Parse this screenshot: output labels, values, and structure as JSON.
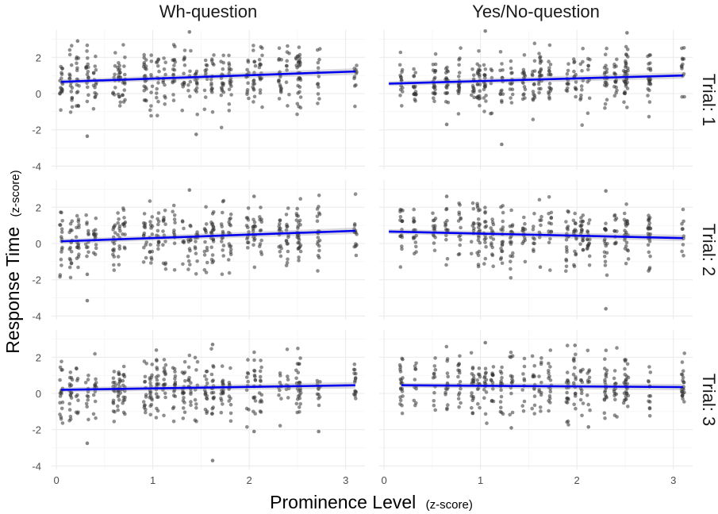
{
  "chart_data": {
    "type": "scatter",
    "xlabel": "Prominence Level",
    "xlabel_unit": "(z-score)",
    "ylabel": "Response Time",
    "ylabel_unit": "(z-score)",
    "columns": [
      "Wh-question",
      "Yes/No-question"
    ],
    "rows": [
      "Trial: 1",
      "Trial: 2",
      "Trial: 3"
    ],
    "xlim": [
      -0.05,
      3.2
    ],
    "ylim": [
      -4.2,
      3.5
    ],
    "x_ticks": [
      0,
      1,
      2,
      3
    ],
    "y_ticks": [
      -4,
      -2,
      0,
      2
    ],
    "grid": true,
    "point_color": "#333333",
    "line_color": "#0000ee",
    "x_levels": {
      "Wh-question": [
        0.05,
        0.15,
        0.22,
        0.32,
        0.4,
        0.6,
        0.65,
        0.7,
        0.92,
        0.98,
        1.05,
        1.12,
        1.22,
        1.32,
        1.38,
        1.45,
        1.55,
        1.62,
        1.72,
        1.8,
        1.98,
        2.05,
        2.12,
        2.32,
        2.4,
        2.5,
        2.52,
        2.72,
        3.1
      ],
      "Yes/No-question": [
        0.18,
        0.32,
        0.52,
        0.65,
        0.78,
        0.92,
        0.98,
        1.05,
        1.12,
        1.22,
        1.32,
        1.45,
        1.55,
        1.62,
        1.72,
        1.9,
        1.98,
        2.05,
        2.12,
        2.3,
        2.4,
        2.5,
        2.52,
        2.75,
        3.1
      ]
    },
    "panels": [
      {
        "column": "Wh-question",
        "row": "Trial: 1",
        "fit": {
          "x": [
            0.05,
            3.1
          ],
          "y": [
            0.65,
            1.22
          ]
        },
        "center": 0.82,
        "spread": 0.85,
        "n": 420,
        "outliers": [
          [
            0.32,
            -2.35
          ],
          [
            1.45,
            -2.25
          ],
          [
            1.38,
            3.4
          ],
          [
            0.22,
            2.9
          ]
        ]
      },
      {
        "column": "Yes/No-question",
        "row": "Trial: 1",
        "fit": {
          "x": [
            0.05,
            3.1
          ],
          "y": [
            0.55,
            1.0
          ]
        },
        "center": 0.78,
        "spread": 0.8,
        "n": 400,
        "outliers": [
          [
            1.22,
            -2.8
          ],
          [
            1.05,
            3.45
          ],
          [
            0.65,
            -1.7
          ],
          [
            2.52,
            3.35
          ]
        ]
      },
      {
        "column": "Wh-question",
        "row": "Trial: 2",
        "fit": {
          "x": [
            0.05,
            3.1
          ],
          "y": [
            0.12,
            0.7
          ]
        },
        "center": 0.35,
        "spread": 0.85,
        "n": 420,
        "outliers": [
          [
            0.32,
            -3.15
          ],
          [
            0.32,
            -1.7
          ],
          [
            1.38,
            2.95
          ],
          [
            2.05,
            2.6
          ]
        ]
      },
      {
        "column": "Yes/No-question",
        "row": "Trial: 2",
        "fit": {
          "x": [
            0.05,
            3.1
          ],
          "y": [
            0.66,
            0.3
          ]
        },
        "center": 0.5,
        "spread": 0.8,
        "n": 380,
        "outliers": [
          [
            2.3,
            -3.6
          ],
          [
            2.3,
            2.9
          ],
          [
            0.65,
            2.6
          ],
          [
            1.62,
            -1.3
          ]
        ]
      },
      {
        "column": "Wh-question",
        "row": "Trial: 3",
        "fit": {
          "x": [
            0.05,
            3.1
          ],
          "y": [
            0.2,
            0.45
          ]
        },
        "center": 0.3,
        "spread": 0.85,
        "n": 420,
        "outliers": [
          [
            1.62,
            -3.7
          ],
          [
            0.32,
            -2.75
          ],
          [
            2.72,
            -2.1
          ],
          [
            1.62,
            2.7
          ],
          [
            2.05,
            -2.1
          ]
        ]
      },
      {
        "column": "Yes/No-question",
        "row": "Trial: 3",
        "fit": {
          "x": [
            0.18,
            3.1
          ],
          "y": [
            0.45,
            0.35
          ]
        },
        "center": 0.4,
        "spread": 0.8,
        "n": 380,
        "outliers": [
          [
            1.05,
            2.8
          ],
          [
            1.98,
            2.65
          ],
          [
            1.32,
            -1.9
          ],
          [
            2.12,
            -1.85
          ]
        ]
      }
    ]
  }
}
